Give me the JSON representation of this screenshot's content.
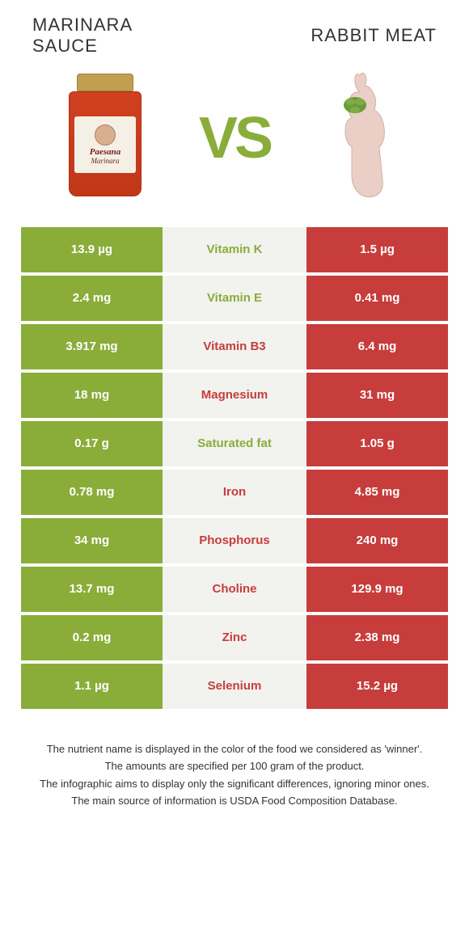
{
  "colors": {
    "left_bg": "#8aad3a",
    "right_bg": "#c63d3b",
    "mid_bg": "#f2f2ef",
    "left_text": "#8aad3a",
    "right_text": "#c63d3b",
    "vs_color": "#8aad3a"
  },
  "header": {
    "left_title": "MARINARA\nSAUCE",
    "right_title": "RABBIT MEAT",
    "vs": "VS",
    "left_product_label_line1": "Paesana",
    "left_product_label_line2": "Marinara"
  },
  "rows": [
    {
      "left": "13.9 µg",
      "label": "Vitamin K",
      "right": "1.5 µg",
      "winner": "left"
    },
    {
      "left": "2.4 mg",
      "label": "Vitamin E",
      "right": "0.41 mg",
      "winner": "left"
    },
    {
      "left": "3.917 mg",
      "label": "Vitamin B3",
      "right": "6.4 mg",
      "winner": "right"
    },
    {
      "left": "18 mg",
      "label": "Magnesium",
      "right": "31 mg",
      "winner": "right"
    },
    {
      "left": "0.17 g",
      "label": "Saturated fat",
      "right": "1.05 g",
      "winner": "left"
    },
    {
      "left": "0.78 mg",
      "label": "Iron",
      "right": "4.85 mg",
      "winner": "right"
    },
    {
      "left": "34 mg",
      "label": "Phosphorus",
      "right": "240 mg",
      "winner": "right"
    },
    {
      "left": "13.7 mg",
      "label": "Choline",
      "right": "129.9 mg",
      "winner": "right"
    },
    {
      "left": "0.2 mg",
      "label": "Zinc",
      "right": "2.38 mg",
      "winner": "right"
    },
    {
      "left": "1.1 µg",
      "label": "Selenium",
      "right": "15.2 µg",
      "winner": "right"
    }
  ],
  "footer": {
    "line1": "The nutrient name is displayed in the color of the food we considered as 'winner'.",
    "line2": "The amounts are specified per 100 gram of the product.",
    "line3": "The infographic aims to display only the significant differences, ignoring minor ones.",
    "line4": "The main source of information is USDA Food Composition Database."
  }
}
